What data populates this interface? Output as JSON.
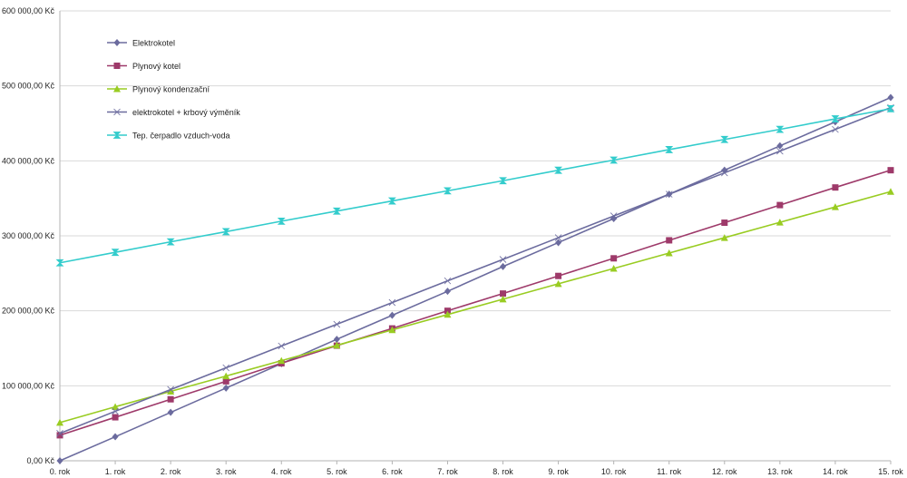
{
  "chart_data": {
    "type": "line",
    "title": "",
    "xlabel": "",
    "ylabel": "",
    "categories": [
      "0. rok",
      "1. rok",
      "2. rok",
      "3. rok",
      "4. rok",
      "5. rok",
      "6. rok",
      "7. rok",
      "8. rok",
      "9. rok",
      "10. rok",
      "11. rok",
      "12. rok",
      "13. rok",
      "14. rok",
      "15. rok"
    ],
    "ylim": [
      0,
      600000
    ],
    "y_ticks": [
      0,
      100000,
      200000,
      300000,
      400000,
      500000,
      600000
    ],
    "y_tick_labels": [
      "0,00 Kč",
      "100 000,00 Kč",
      "200 000,00 Kč",
      "300 000,00 Kč",
      "400 000,00 Kč",
      "500 000,00 Kč",
      "600 000,00 Kč"
    ],
    "grid": true,
    "legend_position": "top-left",
    "series": [
      {
        "name": "Elektrokotel",
        "color": "#6b6b9e",
        "marker": "diamond",
        "values": [
          0,
          32000,
          64500,
          97000,
          129500,
          162000,
          194000,
          226000,
          259000,
          291000,
          323000,
          355500,
          387500,
          420000,
          452000,
          484500
        ]
      },
      {
        "name": "Plynový kotel",
        "color": "#9e3a6a",
        "marker": "square",
        "values": [
          34000,
          58000,
          82000,
          106000,
          130000,
          153500,
          176500,
          200000,
          223000,
          246500,
          270000,
          294000,
          317500,
          341000,
          364500,
          387500
        ]
      },
      {
        "name": "Plynový kondenzační",
        "color": "#99cc22",
        "marker": "triangle",
        "values": [
          51000,
          72000,
          92500,
          113000,
          133500,
          154000,
          174500,
          195000,
          215500,
          236000,
          256500,
          277000,
          297500,
          318000,
          338500,
          359000
        ]
      },
      {
        "name": "elektrokotel + krbový výměník",
        "color": "#6b6b9e",
        "marker": "bowtie",
        "values": [
          36500,
          66000,
          95000,
          124000,
          153000,
          182000,
          211000,
          240000,
          268500,
          297500,
          326500,
          355500,
          384000,
          413000,
          442000,
          471000
        ]
      },
      {
        "name": "Tep. čerpadlo vzduch-voda",
        "color": "#33cccc",
        "marker": "hourglass",
        "values": [
          264000,
          278000,
          292000,
          305500,
          319500,
          333000,
          346500,
          360000,
          373500,
          387500,
          401000,
          415000,
          428500,
          442000,
          456000,
          469500
        ]
      }
    ]
  }
}
